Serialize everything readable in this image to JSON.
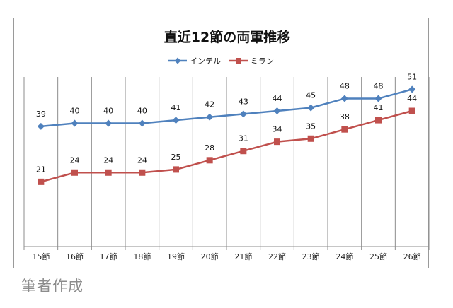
{
  "chart_data": {
    "type": "line",
    "title": "直近12節の両軍推移",
    "categories": [
      "15節",
      "16節",
      "17節",
      "18節",
      "19節",
      "20節",
      "21節",
      "22節",
      "23節",
      "24節",
      "25節",
      "26節"
    ],
    "series": [
      {
        "name": "インテル",
        "color": "#4f81bd",
        "marker": "diamond",
        "values": [
          39,
          40,
          40,
          40,
          41,
          42,
          43,
          44,
          45,
          48,
          48,
          51
        ]
      },
      {
        "name": "ミラン",
        "color": "#c0504d",
        "marker": "square",
        "values": [
          21,
          24,
          24,
          24,
          25,
          28,
          31,
          34,
          35,
          38,
          41,
          44
        ]
      }
    ],
    "ylim": [
      0,
      55
    ],
    "grid": "vertical",
    "legend": "top-center",
    "xlabel": "",
    "ylabel": ""
  },
  "caption": "筆者作成"
}
